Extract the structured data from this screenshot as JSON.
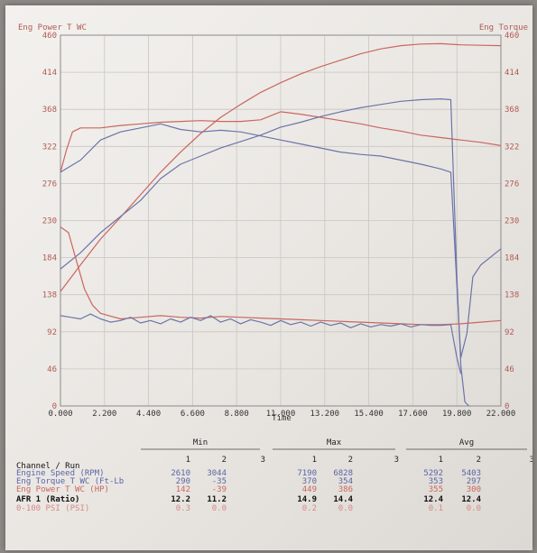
{
  "chart_data": {
    "type": "line",
    "left_axis_title": "Eng Power T WC",
    "right_axis_title": "Eng Torque",
    "xlabel": "Time",
    "xlim": [
      0,
      22
    ],
    "ylim": [
      0,
      460
    ],
    "x_ticks": [
      "0.000",
      "2.200",
      "4.400",
      "6.600",
      "8.800",
      "11.000",
      "13.200",
      "15.400",
      "17.600",
      "19.800",
      "22.000"
    ],
    "y_ticks": [
      "0",
      "46",
      "92",
      "138",
      "184",
      "230",
      "276",
      "322",
      "368",
      "414",
      "460"
    ],
    "grid": true,
    "series": [
      {
        "key": "power",
        "color": "#c9675f",
        "points": [
          [
            0,
            142
          ],
          [
            1,
            175
          ],
          [
            2,
            207
          ],
          [
            3,
            234
          ],
          [
            4,
            262
          ],
          [
            5,
            290
          ],
          [
            6,
            315
          ],
          [
            7,
            338
          ],
          [
            8,
            358
          ],
          [
            9,
            374
          ],
          [
            10,
            389
          ],
          [
            11,
            401
          ],
          [
            12,
            412
          ],
          [
            13,
            421
          ],
          [
            14,
            429
          ],
          [
            15,
            437
          ],
          [
            16,
            443
          ],
          [
            17,
            447
          ],
          [
            18,
            449
          ],
          [
            19,
            449.5
          ],
          [
            20,
            448
          ],
          [
            21,
            447.5
          ],
          [
            22,
            447
          ]
        ]
      },
      {
        "key": "torque",
        "color": "#c9675f",
        "points": [
          [
            0,
            290
          ],
          [
            0.3,
            318
          ],
          [
            0.6,
            340
          ],
          [
            1,
            345
          ],
          [
            2,
            345
          ],
          [
            3,
            348
          ],
          [
            4,
            350
          ],
          [
            5,
            352
          ],
          [
            6,
            353
          ],
          [
            7,
            354
          ],
          [
            8,
            353
          ],
          [
            9,
            353
          ],
          [
            10,
            355
          ],
          [
            11,
            365
          ],
          [
            12,
            362
          ],
          [
            13,
            358
          ],
          [
            14,
            354
          ],
          [
            15,
            350
          ],
          [
            16,
            345
          ],
          [
            17,
            341
          ],
          [
            18,
            336
          ],
          [
            19,
            333
          ],
          [
            20,
            330
          ],
          [
            21,
            327
          ],
          [
            22,
            323
          ]
        ]
      },
      {
        "key": "rpm",
        "color": "#6c74a8",
        "points": [
          [
            0,
            170
          ],
          [
            1,
            190
          ],
          [
            2,
            215
          ],
          [
            3,
            235
          ],
          [
            4,
            255
          ],
          [
            5,
            282
          ],
          [
            6,
            300
          ],
          [
            7,
            310
          ],
          [
            8,
            320
          ],
          [
            9,
            328
          ],
          [
            10,
            336
          ],
          [
            11,
            346
          ],
          [
            12,
            352
          ],
          [
            13,
            359
          ],
          [
            14,
            365
          ],
          [
            15,
            370
          ],
          [
            16,
            374
          ],
          [
            17,
            378
          ],
          [
            18,
            380
          ],
          [
            19,
            381
          ],
          [
            19.5,
            380
          ],
          [
            19.8,
            160
          ],
          [
            20.0,
            50
          ],
          [
            20.2,
            5
          ],
          [
            20.4,
            0
          ]
        ]
      },
      {
        "key": "torque2",
        "color": "#6c74a8",
        "points": [
          [
            0,
            290
          ],
          [
            1,
            305
          ],
          [
            2,
            330
          ],
          [
            3,
            340
          ],
          [
            4,
            345
          ],
          [
            5,
            350
          ],
          [
            6,
            343
          ],
          [
            7,
            340
          ],
          [
            8,
            342
          ],
          [
            9,
            340
          ],
          [
            10,
            335
          ],
          [
            11,
            330
          ],
          [
            12,
            325
          ],
          [
            13,
            320
          ],
          [
            14,
            315
          ],
          [
            15,
            312
          ],
          [
            16,
            310
          ],
          [
            17,
            305
          ],
          [
            18,
            300
          ],
          [
            19,
            294
          ],
          [
            19.5,
            290
          ],
          [
            19.8,
            150
          ],
          [
            20.0,
            60
          ],
          [
            20.3,
            90
          ],
          [
            20.6,
            160
          ],
          [
            21,
            175
          ],
          [
            22,
            195
          ]
        ]
      },
      {
        "key": "afr1",
        "color": "#c9675f",
        "points": [
          [
            0,
            222
          ],
          [
            0.4,
            215
          ],
          [
            0.8,
            180
          ],
          [
            1.2,
            145
          ],
          [
            1.6,
            125
          ],
          [
            2,
            115
          ],
          [
            3,
            108
          ],
          [
            4,
            110
          ],
          [
            5,
            112
          ],
          [
            6,
            110
          ],
          [
            7,
            109
          ],
          [
            8,
            111
          ],
          [
            9,
            110
          ],
          [
            10,
            109
          ],
          [
            11,
            108
          ],
          [
            12,
            107
          ],
          [
            13,
            106
          ],
          [
            14,
            105
          ],
          [
            15,
            104
          ],
          [
            16,
            103
          ],
          [
            17,
            102
          ],
          [
            18,
            101
          ],
          [
            19,
            101
          ],
          [
            20,
            102
          ],
          [
            21,
            104
          ],
          [
            22,
            106
          ]
        ]
      },
      {
        "key": "afr2",
        "color": "#6c74a8",
        "points": [
          [
            0,
            112
          ],
          [
            0.5,
            110
          ],
          [
            1,
            108
          ],
          [
            1.5,
            114
          ],
          [
            2,
            108
          ],
          [
            2.5,
            104
          ],
          [
            3,
            106
          ],
          [
            3.5,
            110
          ],
          [
            4,
            103
          ],
          [
            4.5,
            106
          ],
          [
            5,
            102
          ],
          [
            5.5,
            108
          ],
          [
            6,
            104
          ],
          [
            6.5,
            110
          ],
          [
            7,
            106
          ],
          [
            7.5,
            112
          ],
          [
            8,
            104
          ],
          [
            8.5,
            108
          ],
          [
            9,
            102
          ],
          [
            9.5,
            107
          ],
          [
            10,
            104
          ],
          [
            10.5,
            100
          ],
          [
            11,
            106
          ],
          [
            11.5,
            101
          ],
          [
            12,
            104
          ],
          [
            12.5,
            99
          ],
          [
            13,
            104
          ],
          [
            13.5,
            100
          ],
          [
            14,
            103
          ],
          [
            14.5,
            97
          ],
          [
            15,
            102
          ],
          [
            15.5,
            98
          ],
          [
            16,
            101
          ],
          [
            16.5,
            99
          ],
          [
            17,
            102
          ],
          [
            17.5,
            98
          ],
          [
            18,
            101
          ],
          [
            18.5,
            100
          ],
          [
            19,
            100
          ],
          [
            19.5,
            101
          ],
          [
            19.8,
            60
          ],
          [
            20.0,
            40
          ]
        ]
      }
    ]
  },
  "table": {
    "group_headers": [
      "Min",
      "Max",
      "Avg"
    ],
    "run_header": "Channel / Run",
    "run_numbers": [
      "1",
      "2",
      "3"
    ],
    "rows": [
      {
        "label": "Engine Speed (RPM)",
        "color": "#5a64a6",
        "min": [
          "2610",
          "3044"
        ],
        "max": [
          "7190",
          "6828"
        ],
        "avg": [
          "5292",
          "5403"
        ]
      },
      {
        "label": "Eng Torque T WC (Ft-Lb",
        "color": "#5a64a6",
        "min": [
          "290",
          "-35"
        ],
        "max": [
          "370",
          "354"
        ],
        "avg": [
          "353",
          "297"
        ]
      },
      {
        "label": "Eng Power T WC (HP)",
        "color": "#c9675f",
        "min": [
          "142",
          "-39"
        ],
        "max": [
          "449",
          "386"
        ],
        "avg": [
          "355",
          "300"
        ]
      },
      {
        "label": "AFR 1 (Ratio)",
        "color": "#111111",
        "min": [
          "12.2",
          "11.2"
        ],
        "max": [
          "14.9",
          "14.4"
        ],
        "avg": [
          "12.4",
          "12.4"
        ]
      },
      {
        "label": "0-100 PSI (PSI)",
        "color": "#d68a84",
        "min": [
          "0.3",
          "0.0"
        ],
        "max": [
          "0.2",
          "0.0"
        ],
        "avg": [
          "0.1",
          "0.0"
        ]
      }
    ]
  }
}
